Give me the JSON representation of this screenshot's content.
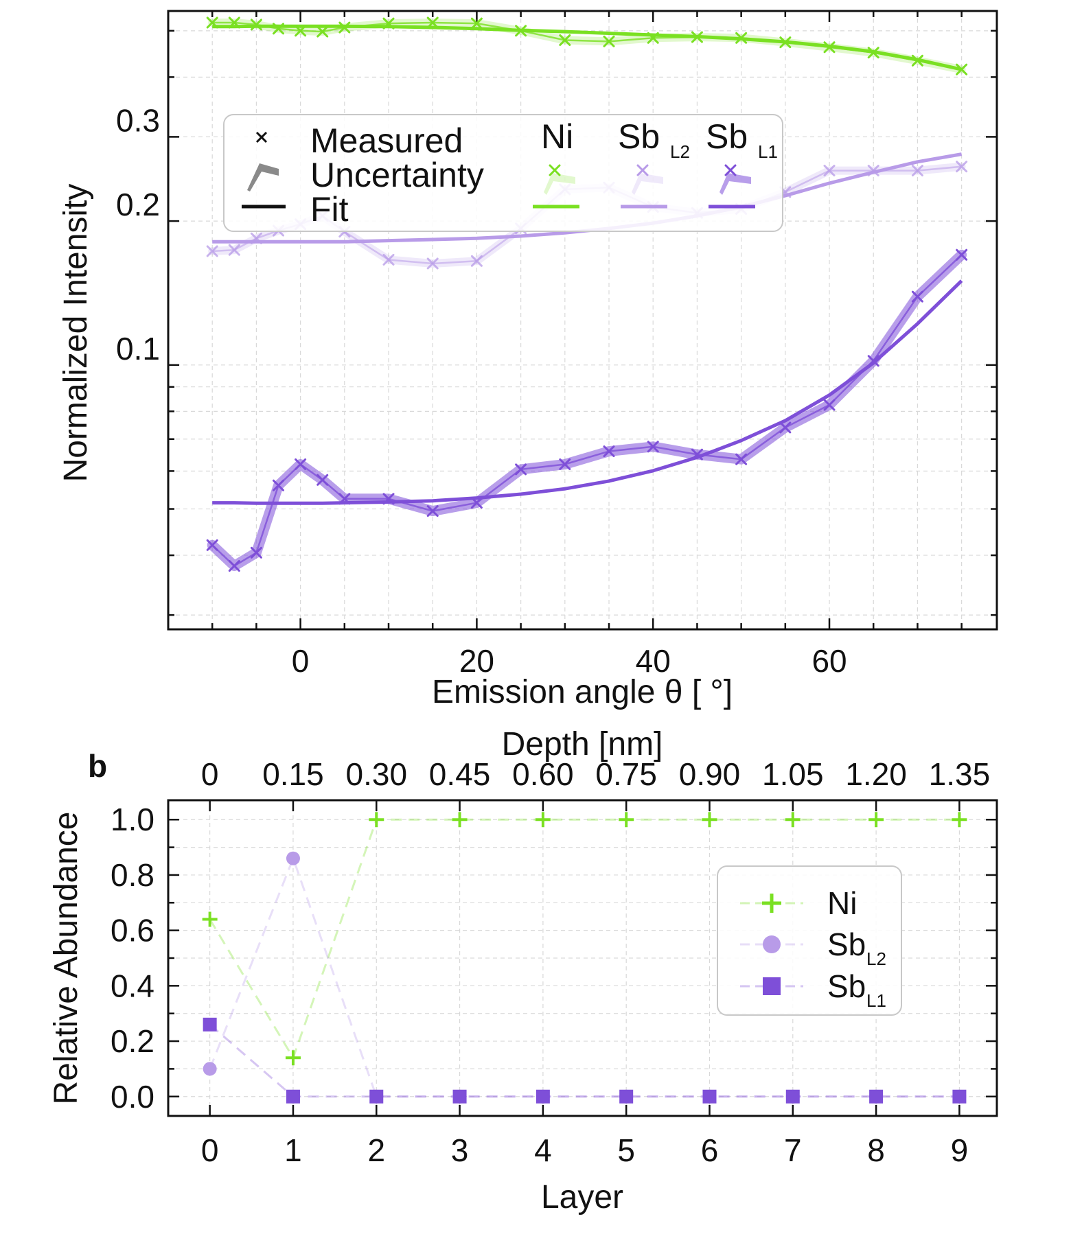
{
  "chart_data": [
    {
      "type": "line",
      "panel": "a",
      "title": "",
      "xlabel": "Emission angle  θ [ °]",
      "ylabel": "Normalized Intensity",
      "yscale": "log",
      "xlim": [
        -15,
        79
      ],
      "ylim": [
        0.028,
        0.55
      ],
      "xticks": [
        0,
        20,
        40,
        60
      ],
      "xtick_labels": [
        "0",
        "20",
        "40",
        "60"
      ],
      "yticks": [
        0.1,
        0.2,
        0.3
      ],
      "ytick_labels": [
        "0.1",
        "0.2",
        "0.3"
      ],
      "legend": {
        "position": "upper-middle",
        "style_rows": [
          "Measured",
          "Uncertainty",
          "Fit"
        ],
        "columns": [
          {
            "main": "Ni",
            "sub": ""
          },
          {
            "main": "Sb",
            "sub": "L2"
          },
          {
            "main": "Sb",
            "sub": "L1"
          }
        ]
      },
      "series": [
        {
          "name": "Ni",
          "color": "#7ae022",
          "x": [
            -10,
            -7.5,
            -5,
            -2.5,
            0,
            2.5,
            5,
            10,
            15,
            20,
            25,
            30,
            35,
            40,
            45,
            50,
            55,
            60,
            65,
            70,
            75
          ],
          "measured": [
            0.52,
            0.52,
            0.515,
            0.505,
            0.5,
            0.498,
            0.508,
            0.518,
            0.52,
            0.518,
            0.5,
            0.478,
            0.475,
            0.483,
            0.485,
            0.483,
            0.473,
            0.462,
            0.45,
            0.433,
            0.415
          ],
          "fit": [
            0.51,
            0.51,
            0.511,
            0.511,
            0.511,
            0.511,
            0.511,
            0.51,
            0.508,
            0.505,
            0.501,
            0.498,
            0.494,
            0.49,
            0.486,
            0.481,
            0.474,
            0.464,
            0.452,
            0.435,
            0.415
          ]
        },
        {
          "name": "SbL2",
          "color": "#b89be8",
          "x": [
            -10,
            -7.5,
            -5,
            -2.5,
            0,
            2.5,
            5,
            10,
            15,
            20,
            25,
            30,
            35,
            40,
            45,
            50,
            55,
            60,
            65,
            70,
            75
          ],
          "measured": [
            0.173,
            0.174,
            0.184,
            0.191,
            0.197,
            0.205,
            0.19,
            0.166,
            0.163,
            0.165,
            0.193,
            0.233,
            0.235,
            0.214,
            0.208,
            0.212,
            0.23,
            0.255,
            0.255,
            0.255,
            0.26
          ],
          "fit": [
            0.181,
            0.181,
            0.181,
            0.181,
            0.181,
            0.181,
            0.181,
            0.182,
            0.183,
            0.184,
            0.186,
            0.189,
            0.193,
            0.198,
            0.205,
            0.214,
            0.226,
            0.24,
            0.253,
            0.266,
            0.276
          ]
        },
        {
          "name": "SbL1",
          "color": "#7e4fd8",
          "x": [
            -10,
            -7.5,
            -5,
            -2.5,
            0,
            2.5,
            5,
            10,
            15,
            20,
            25,
            30,
            35,
            40,
            45,
            50,
            55,
            60,
            65,
            70,
            75
          ],
          "measured": [
            0.042,
            0.038,
            0.0405,
            0.056,
            0.062,
            0.0575,
            0.0525,
            0.0525,
            0.0495,
            0.0515,
            0.0605,
            0.062,
            0.066,
            0.0675,
            0.065,
            0.0635,
            0.074,
            0.0825,
            0.102,
            0.139,
            0.17
          ],
          "fit": [
            0.0515,
            0.0515,
            0.0514,
            0.0514,
            0.0514,
            0.0514,
            0.0515,
            0.0517,
            0.052,
            0.0527,
            0.0537,
            0.0551,
            0.0572,
            0.0601,
            0.0641,
            0.0695,
            0.0765,
            0.0865,
            0.101,
            0.122,
            0.15
          ]
        }
      ]
    },
    {
      "type": "line",
      "panel": "b",
      "panel_label": "b",
      "title": "",
      "xlabel": "Layer",
      "x2label": "Depth [nm]",
      "ylabel": "Relative Abundance",
      "xlim": [
        -0.5,
        9.45
      ],
      "ylim": [
        -0.07,
        1.07
      ],
      "categories": [
        "0",
        "1",
        "2",
        "3",
        "4",
        "5",
        "6",
        "7",
        "8",
        "9"
      ],
      "x2_tick_labels": [
        "0",
        "0.15",
        "0.30",
        "0.45",
        "0.60",
        "0.75",
        "0.90",
        "1.05",
        "1.20",
        "1.35"
      ],
      "yticks": [
        0,
        0.2,
        0.4,
        0.6,
        0.8,
        1.0
      ],
      "ytick_labels": [
        "0.0",
        "0.2",
        "0.4",
        "0.6",
        "0.8",
        "1.0"
      ],
      "legend": {
        "position": "center-right",
        "entries": [
          {
            "main": "Ni",
            "sub": "",
            "marker": "plus"
          },
          {
            "main": "Sb",
            "sub": "L2",
            "marker": "circle"
          },
          {
            "main": "Sb",
            "sub": "L1",
            "marker": "square"
          }
        ]
      },
      "series": [
        {
          "name": "Ni",
          "color": "#7ae022",
          "marker": "plus",
          "values": [
            0.64,
            0.14,
            1.0,
            1.0,
            1.0,
            1.0,
            1.0,
            1.0,
            1.0,
            1.0
          ]
        },
        {
          "name": "SbL2",
          "color": "#b89be8",
          "marker": "circle",
          "values": [
            0.1,
            0.86,
            0.0,
            0.0,
            0.0,
            0.0,
            0.0,
            0.0,
            0.0,
            0.0
          ]
        },
        {
          "name": "SbL1",
          "color": "#7e4fd8",
          "marker": "square",
          "values": [
            0.26,
            0.0,
            0.0,
            0.0,
            0.0,
            0.0,
            0.0,
            0.0,
            0.0,
            0.0
          ]
        }
      ]
    }
  ]
}
